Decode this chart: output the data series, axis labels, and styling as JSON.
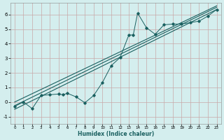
{
  "xlabel": "Humidex (Indice chaleur)",
  "ylabel": "",
  "bg_color": "#d4eeee",
  "grid_color": "#c8a8a8",
  "line_color": "#1a6060",
  "xlim": [
    -0.5,
    23.5
  ],
  "ylim": [
    -1.5,
    6.8
  ],
  "xticks": [
    0,
    1,
    2,
    3,
    4,
    5,
    6,
    7,
    8,
    9,
    10,
    11,
    12,
    13,
    14,
    15,
    16,
    17,
    18,
    19,
    20,
    21,
    22,
    23
  ],
  "yticks": [
    -1,
    0,
    1,
    2,
    3,
    4,
    5,
    6
  ],
  "scatter_x": [
    0,
    1,
    2,
    3,
    4,
    5,
    5.5,
    6,
    7,
    8,
    9,
    10,
    11,
    12,
    13,
    13.5,
    14,
    15,
    16,
    17,
    18,
    19,
    20,
    21,
    22,
    23
  ],
  "scatter_y": [
    -0.3,
    0.0,
    -0.45,
    0.45,
    0.5,
    0.55,
    0.5,
    0.6,
    0.35,
    -0.05,
    0.45,
    1.35,
    2.5,
    3.05,
    4.6,
    4.6,
    6.1,
    5.1,
    4.65,
    5.3,
    5.35,
    5.35,
    5.45,
    5.55,
    5.9,
    6.35
  ],
  "reg_lines": [
    {
      "x0": 0,
      "y0": -0.5,
      "x1": 23,
      "y1": 6.35
    },
    {
      "x0": 0,
      "y0": -0.25,
      "x1": 23,
      "y1": 6.5
    },
    {
      "x0": 0,
      "y0": 0.0,
      "x1": 23,
      "y1": 6.6
    }
  ]
}
